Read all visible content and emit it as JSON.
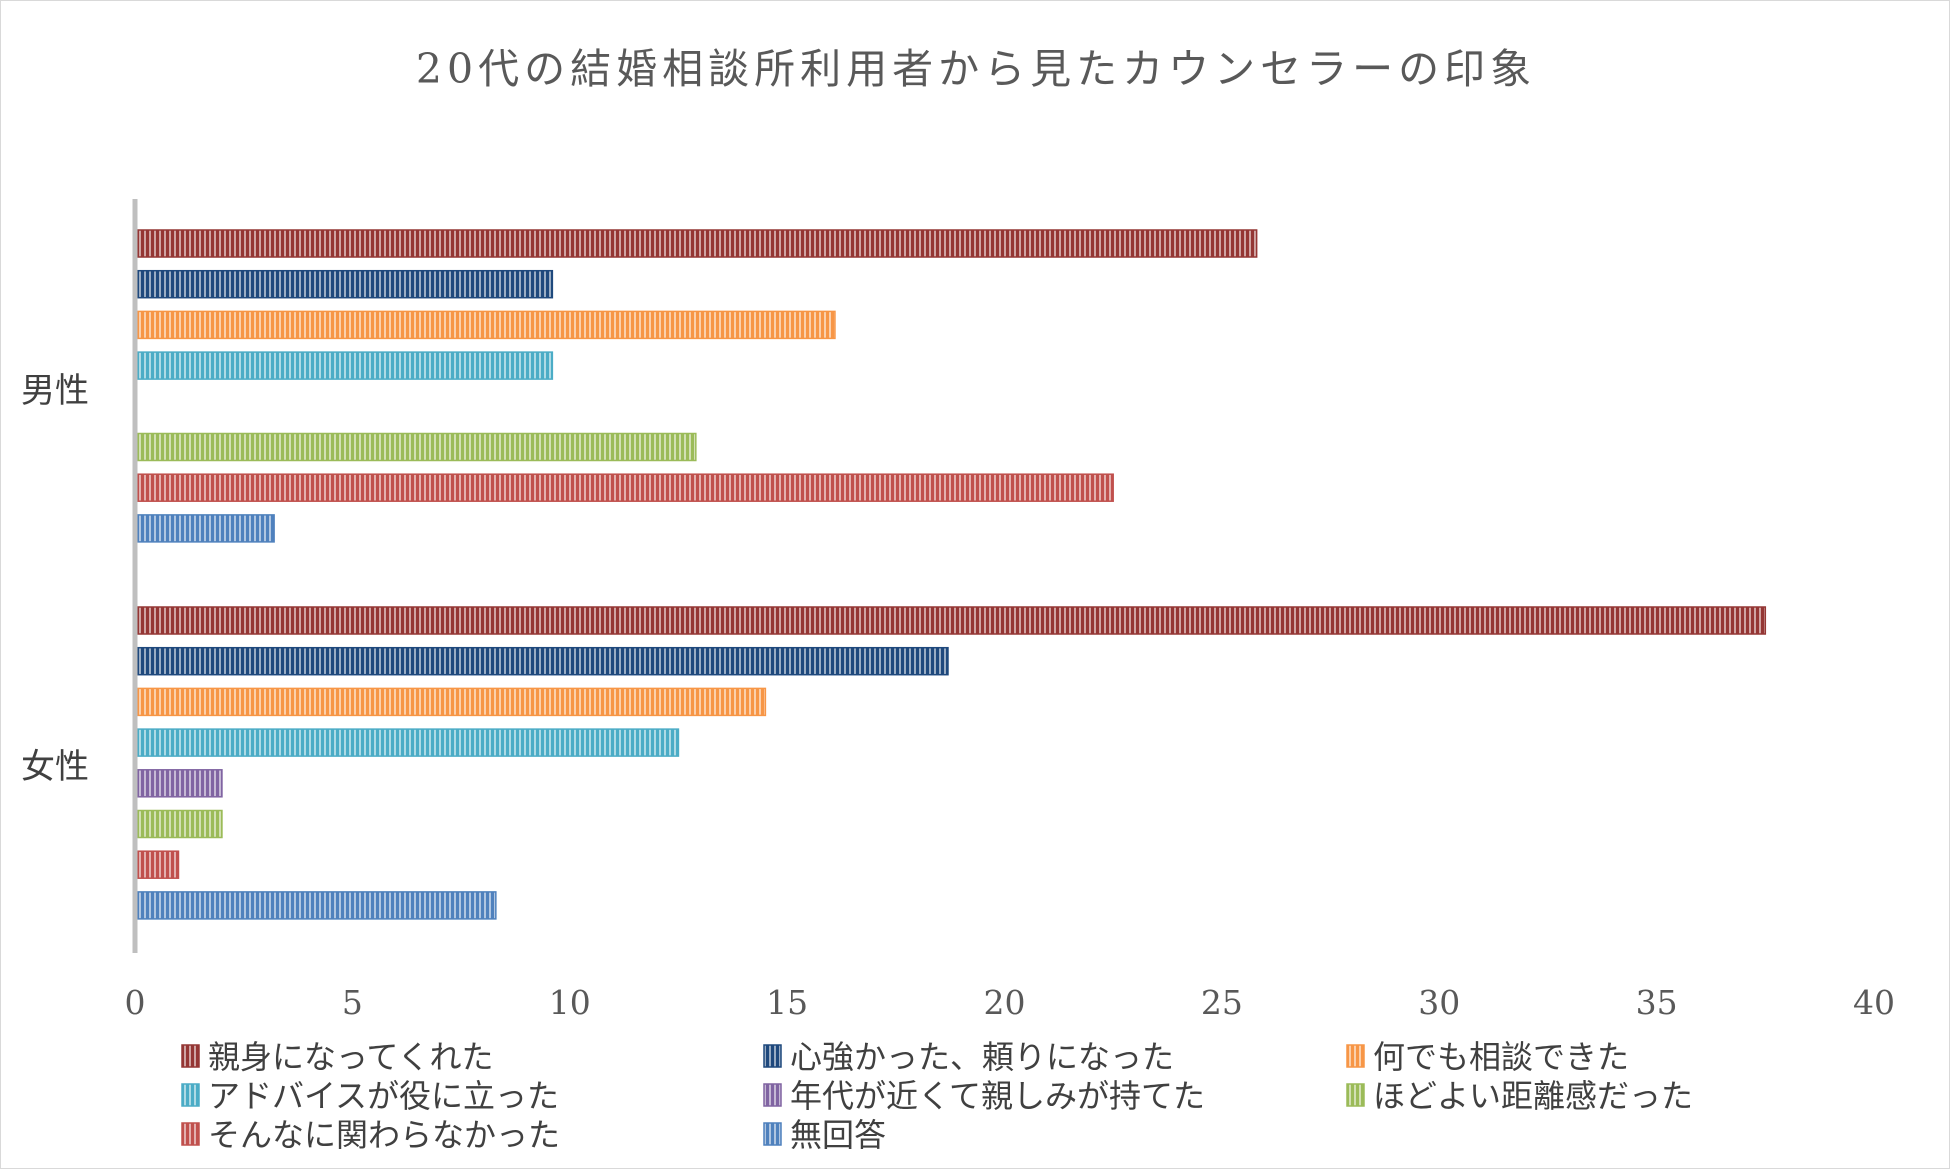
{
  "chart_data": {
    "type": "bar",
    "orientation": "horizontal",
    "title": "20代の結婚相談所利用者から見たカウンセラーの印象",
    "categories": [
      "男性",
      "女性"
    ],
    "series": [
      {
        "name": "親身になってくれた",
        "color": "#943634",
        "values": [
          25.8,
          37.5
        ]
      },
      {
        "name": "心強かった、頼りになった",
        "color": "#1F497D",
        "values": [
          9.6,
          18.7
        ]
      },
      {
        "name": "何でも相談できた",
        "color": "#F79646",
        "values": [
          16.1,
          14.5
        ]
      },
      {
        "name": "アドバイスが役に立った",
        "color": "#4BACC6",
        "values": [
          9.6,
          12.5
        ]
      },
      {
        "name": "年代が近くて親しみが持てた",
        "color": "#8064A2",
        "values": [
          0,
          2.0
        ]
      },
      {
        "name": "ほどよい距離感だった",
        "color": "#9BBB59",
        "values": [
          12.9,
          2.0
        ]
      },
      {
        "name": "そんなに関わらなかった",
        "color": "#C0504D",
        "values": [
          22.5,
          1.0
        ]
      },
      {
        "name": "無回答",
        "color": "#4F81BD",
        "values": [
          3.2,
          8.3
        ]
      }
    ],
    "xlim": [
      0,
      40
    ],
    "xticks": [
      0,
      5,
      10,
      15,
      20,
      25,
      30,
      35,
      40
    ],
    "grid": false,
    "legend_position": "bottom"
  }
}
